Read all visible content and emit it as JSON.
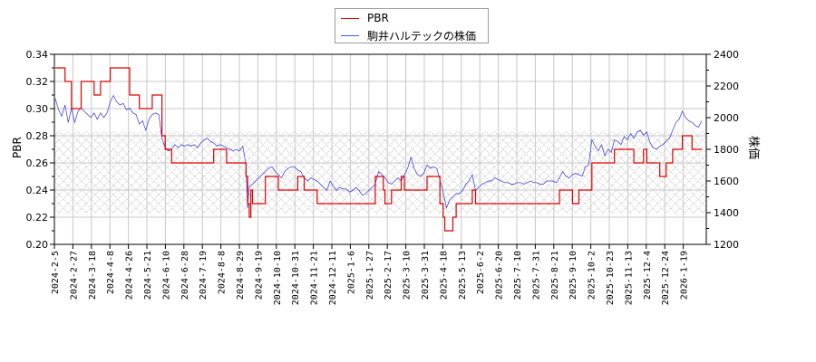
{
  "chart_data": {
    "type": "line",
    "title": "",
    "legend": {
      "position": "top-center",
      "entries": [
        {
          "label": "PBR",
          "color": "#dd0000"
        },
        {
          "label": "駒井ハルテックの株価",
          "color": "#3333dd"
        }
      ]
    },
    "axes": {
      "y_left": {
        "label": "PBR",
        "ticks": [
          "0.20",
          "0.22",
          "0.24",
          "0.26",
          "0.28",
          "0.30",
          "0.32",
          "0.34"
        ],
        "range": [
          0.2,
          0.34
        ]
      },
      "y_right": {
        "label": "株価",
        "ticks": [
          "1200",
          "1400",
          "1600",
          "1800",
          "2000",
          "2200",
          "2400"
        ],
        "range": [
          1200,
          2400
        ]
      },
      "x": {
        "label": "",
        "ticks": [
          "2024-2-5",
          "2024-2-27",
          "2024-3-18",
          "2024-4-8",
          "2024-4-26",
          "2024-5-21",
          "2024-6-10",
          "2024-6-28",
          "2024-7-19",
          "2024-8-8",
          "2024-8-29",
          "2024-9-19",
          "2024-10-10",
          "2024-10-31",
          "2024-11-21",
          "2024-12-11",
          "2025-1-6",
          "2025-1-27",
          "2025-2-17",
          "2025-3-10",
          "2025-3-31",
          "2025-4-18",
          "2025-5-13",
          "2025-6-2",
          "2025-6-20",
          "2025-7-10",
          "2025-7-31",
          "2025-8-21",
          "2025-9-10",
          "2025-10-2",
          "2025-10-23",
          "2025-11-13",
          "2025-12-4",
          "2025-12-24",
          "2026-1-19"
        ]
      }
    },
    "grid": true,
    "shaded_band": {
      "pbr_range": [
        0.223,
        0.283
      ],
      "pattern": "crosshatch"
    },
    "series": [
      {
        "name": "PBR",
        "axis": "left",
        "color": "#dd0000",
        "step": true,
        "points": [
          [
            0,
            0.33
          ],
          [
            2,
            0.33
          ],
          [
            3,
            0.32
          ],
          [
            5,
            0.3
          ],
          [
            6,
            0.3
          ],
          [
            8,
            0.32
          ],
          [
            11,
            0.32
          ],
          [
            12,
            0.31
          ],
          [
            13,
            0.31
          ],
          [
            14,
            0.32
          ],
          [
            17,
            0.33
          ],
          [
            22,
            0.33
          ],
          [
            23,
            0.31
          ],
          [
            25,
            0.31
          ],
          [
            26,
            0.3
          ],
          [
            29,
            0.3
          ],
          [
            30,
            0.31
          ],
          [
            32,
            0.31
          ],
          [
            33,
            0.28
          ],
          [
            34,
            0.27
          ],
          [
            36,
            0.26
          ],
          [
            48,
            0.26
          ],
          [
            49,
            0.27
          ],
          [
            52,
            0.27
          ],
          [
            53,
            0.26
          ],
          [
            58,
            0.26
          ],
          [
            59,
            0.25
          ],
          [
            59.5,
            0.23
          ],
          [
            60,
            0.22
          ],
          [
            60.5,
            0.24
          ],
          [
            61,
            0.23
          ],
          [
            64,
            0.23
          ],
          [
            65,
            0.25
          ],
          [
            68,
            0.25
          ],
          [
            69,
            0.24
          ],
          [
            74,
            0.24
          ],
          [
            75,
            0.25
          ],
          [
            76,
            0.25
          ],
          [
            77,
            0.24
          ],
          [
            80,
            0.24
          ],
          [
            81,
            0.23
          ],
          [
            98,
            0.23
          ],
          [
            99,
            0.25
          ],
          [
            101,
            0.25
          ],
          [
            101.5,
            0.24
          ],
          [
            102,
            0.23
          ],
          [
            103,
            0.23
          ],
          [
            104,
            0.24
          ],
          [
            106,
            0.24
          ],
          [
            107,
            0.25
          ],
          [
            108,
            0.24
          ],
          [
            114,
            0.24
          ],
          [
            115,
            0.25
          ],
          [
            118,
            0.25
          ],
          [
            119,
            0.23
          ],
          [
            120,
            0.22
          ],
          [
            120.5,
            0.21
          ],
          [
            122,
            0.21
          ],
          [
            123,
            0.22
          ],
          [
            124,
            0.23
          ],
          [
            128,
            0.23
          ],
          [
            129,
            0.24
          ],
          [
            130,
            0.23
          ],
          [
            155,
            0.23
          ],
          [
            156,
            0.24
          ],
          [
            159,
            0.24
          ],
          [
            160,
            0.23
          ],
          [
            161,
            0.23
          ],
          [
            162,
            0.24
          ],
          [
            165,
            0.24
          ],
          [
            166,
            0.26
          ],
          [
            172,
            0.26
          ],
          [
            173,
            0.27
          ],
          [
            178,
            0.27
          ],
          [
            179,
            0.26
          ],
          [
            181,
            0.26
          ],
          [
            182,
            0.27
          ],
          [
            183,
            0.26
          ],
          [
            186,
            0.26
          ],
          [
            187,
            0.25
          ],
          [
            188,
            0.25
          ],
          [
            189,
            0.26
          ],
          [
            190,
            0.26
          ],
          [
            191,
            0.27
          ],
          [
            193,
            0.27
          ],
          [
            194,
            0.28
          ],
          [
            196,
            0.28
          ],
          [
            197,
            0.27
          ],
          [
            200,
            0.27
          ]
        ]
      },
      {
        "name": "駒井ハルテックの株価",
        "axis": "right",
        "color": "#3333dd",
        "step": false,
        "points": [
          [
            0,
            2120
          ],
          [
            1,
            2050
          ],
          [
            2,
            2010
          ],
          [
            3,
            2080
          ],
          [
            4,
            1970
          ],
          [
            5,
            2060
          ],
          [
            6,
            1970
          ],
          [
            7,
            2040
          ],
          [
            8,
            2060
          ],
          [
            9,
            2040
          ],
          [
            10,
            2020
          ],
          [
            11,
            2000
          ],
          [
            12,
            2030
          ],
          [
            13,
            1990
          ],
          [
            14,
            2030
          ],
          [
            15,
            2000
          ],
          [
            16,
            2030
          ],
          [
            17,
            2100
          ],
          [
            18,
            2140
          ],
          [
            19,
            2100
          ],
          [
            20,
            2080
          ],
          [
            21,
            2090
          ],
          [
            22,
            2050
          ],
          [
            23,
            2060
          ],
          [
            24,
            2030
          ],
          [
            25,
            2020
          ],
          [
            26,
            1960
          ],
          [
            27,
            1980
          ],
          [
            28,
            1920
          ],
          [
            29,
            1990
          ],
          [
            30,
            2020
          ],
          [
            31,
            2030
          ],
          [
            32,
            2020
          ],
          [
            33,
            1870
          ],
          [
            34,
            1810
          ],
          [
            35,
            1790
          ],
          [
            36,
            1800
          ],
          [
            37,
            1830
          ],
          [
            38,
            1810
          ],
          [
            39,
            1830
          ],
          [
            40,
            1820
          ],
          [
            41,
            1830
          ],
          [
            42,
            1820
          ],
          [
            43,
            1830
          ],
          [
            44,
            1810
          ],
          [
            45,
            1840
          ],
          [
            46,
            1860
          ],
          [
            47,
            1870
          ],
          [
            48,
            1850
          ],
          [
            49,
            1840
          ],
          [
            50,
            1820
          ],
          [
            51,
            1830
          ],
          [
            52,
            1820
          ],
          [
            53,
            1810
          ],
          [
            54,
            1800
          ],
          [
            55,
            1790
          ],
          [
            56,
            1800
          ],
          [
            57,
            1790
          ],
          [
            58,
            1820
          ],
          [
            59,
            1700
          ],
          [
            59.5,
            1430
          ],
          [
            60,
            1560
          ],
          [
            61,
            1580
          ],
          [
            62,
            1600
          ],
          [
            63,
            1620
          ],
          [
            64,
            1640
          ],
          [
            65,
            1660
          ],
          [
            66,
            1680
          ],
          [
            67,
            1690
          ],
          [
            68,
            1660
          ],
          [
            69,
            1640
          ],
          [
            70,
            1620
          ],
          [
            71,
            1660
          ],
          [
            72,
            1680
          ],
          [
            73,
            1690
          ],
          [
            74,
            1690
          ],
          [
            75,
            1670
          ],
          [
            76,
            1660
          ],
          [
            77,
            1620
          ],
          [
            78,
            1600
          ],
          [
            79,
            1620
          ],
          [
            80,
            1610
          ],
          [
            81,
            1600
          ],
          [
            82,
            1580
          ],
          [
            83,
            1560
          ],
          [
            84,
            1540
          ],
          [
            85,
            1600
          ],
          [
            86,
            1570
          ],
          [
            87,
            1540
          ],
          [
            88,
            1560
          ],
          [
            89,
            1550
          ],
          [
            90,
            1550
          ],
          [
            91,
            1530
          ],
          [
            92,
            1540
          ],
          [
            93,
            1560
          ],
          [
            94,
            1540
          ],
          [
            95,
            1510
          ],
          [
            96,
            1520
          ],
          [
            97,
            1540
          ],
          [
            98,
            1560
          ],
          [
            99,
            1580
          ],
          [
            100,
            1660
          ],
          [
            101,
            1640
          ],
          [
            102,
            1620
          ],
          [
            103,
            1590
          ],
          [
            104,
            1580
          ],
          [
            105,
            1600
          ],
          [
            106,
            1620
          ],
          [
            107,
            1600
          ],
          [
            108,
            1640
          ],
          [
            109,
            1680
          ],
          [
            110,
            1750
          ],
          [
            111,
            1680
          ],
          [
            112,
            1640
          ],
          [
            113,
            1630
          ],
          [
            114,
            1650
          ],
          [
            115,
            1700
          ],
          [
            116,
            1680
          ],
          [
            117,
            1690
          ],
          [
            118,
            1680
          ],
          [
            119,
            1610
          ],
          [
            120,
            1530
          ],
          [
            121,
            1430
          ],
          [
            122,
            1480
          ],
          [
            123,
            1500
          ],
          [
            124,
            1520
          ],
          [
            125,
            1520
          ],
          [
            126,
            1540
          ],
          [
            127,
            1580
          ],
          [
            128,
            1600
          ],
          [
            129,
            1640
          ],
          [
            130,
            1540
          ],
          [
            131,
            1560
          ],
          [
            132,
            1580
          ],
          [
            133,
            1590
          ],
          [
            134,
            1600
          ],
          [
            135,
            1600
          ],
          [
            136,
            1620
          ],
          [
            137,
            1610
          ],
          [
            138,
            1600
          ],
          [
            139,
            1590
          ],
          [
            140,
            1590
          ],
          [
            141,
            1580
          ],
          [
            142,
            1580
          ],
          [
            143,
            1590
          ],
          [
            144,
            1590
          ],
          [
            145,
            1580
          ],
          [
            146,
            1590
          ],
          [
            147,
            1600
          ],
          [
            148,
            1590
          ],
          [
            149,
            1590
          ],
          [
            150,
            1580
          ],
          [
            151,
            1580
          ],
          [
            152,
            1600
          ],
          [
            153,
            1600
          ],
          [
            154,
            1600
          ],
          [
            155,
            1590
          ],
          [
            156,
            1620
          ],
          [
            157,
            1660
          ],
          [
            158,
            1630
          ],
          [
            159,
            1620
          ],
          [
            160,
            1640
          ],
          [
            161,
            1650
          ],
          [
            162,
            1640
          ],
          [
            163,
            1630
          ],
          [
            164,
            1690
          ],
          [
            165,
            1700
          ],
          [
            166,
            1860
          ],
          [
            167,
            1820
          ],
          [
            168,
            1790
          ],
          [
            169,
            1830
          ],
          [
            170,
            1760
          ],
          [
            171,
            1800
          ],
          [
            172,
            1780
          ],
          [
            173,
            1860
          ],
          [
            174,
            1850
          ],
          [
            175,
            1830
          ],
          [
            176,
            1880
          ],
          [
            177,
            1860
          ],
          [
            178,
            1900
          ],
          [
            179,
            1870
          ],
          [
            180,
            1910
          ],
          [
            181,
            1920
          ],
          [
            182,
            1890
          ],
          [
            183,
            1910
          ],
          [
            184,
            1840
          ],
          [
            185,
            1810
          ],
          [
            186,
            1800
          ],
          [
            187,
            1820
          ],
          [
            188,
            1830
          ],
          [
            189,
            1850
          ],
          [
            190,
            1870
          ],
          [
            191,
            1920
          ],
          [
            192,
            1970
          ],
          [
            193,
            1990
          ],
          [
            194,
            2040
          ],
          [
            195,
            2000
          ],
          [
            196,
            1980
          ],
          [
            197,
            1970
          ],
          [
            198,
            1950
          ],
          [
            199,
            1940
          ],
          [
            200,
            1980
          ]
        ]
      }
    ]
  }
}
